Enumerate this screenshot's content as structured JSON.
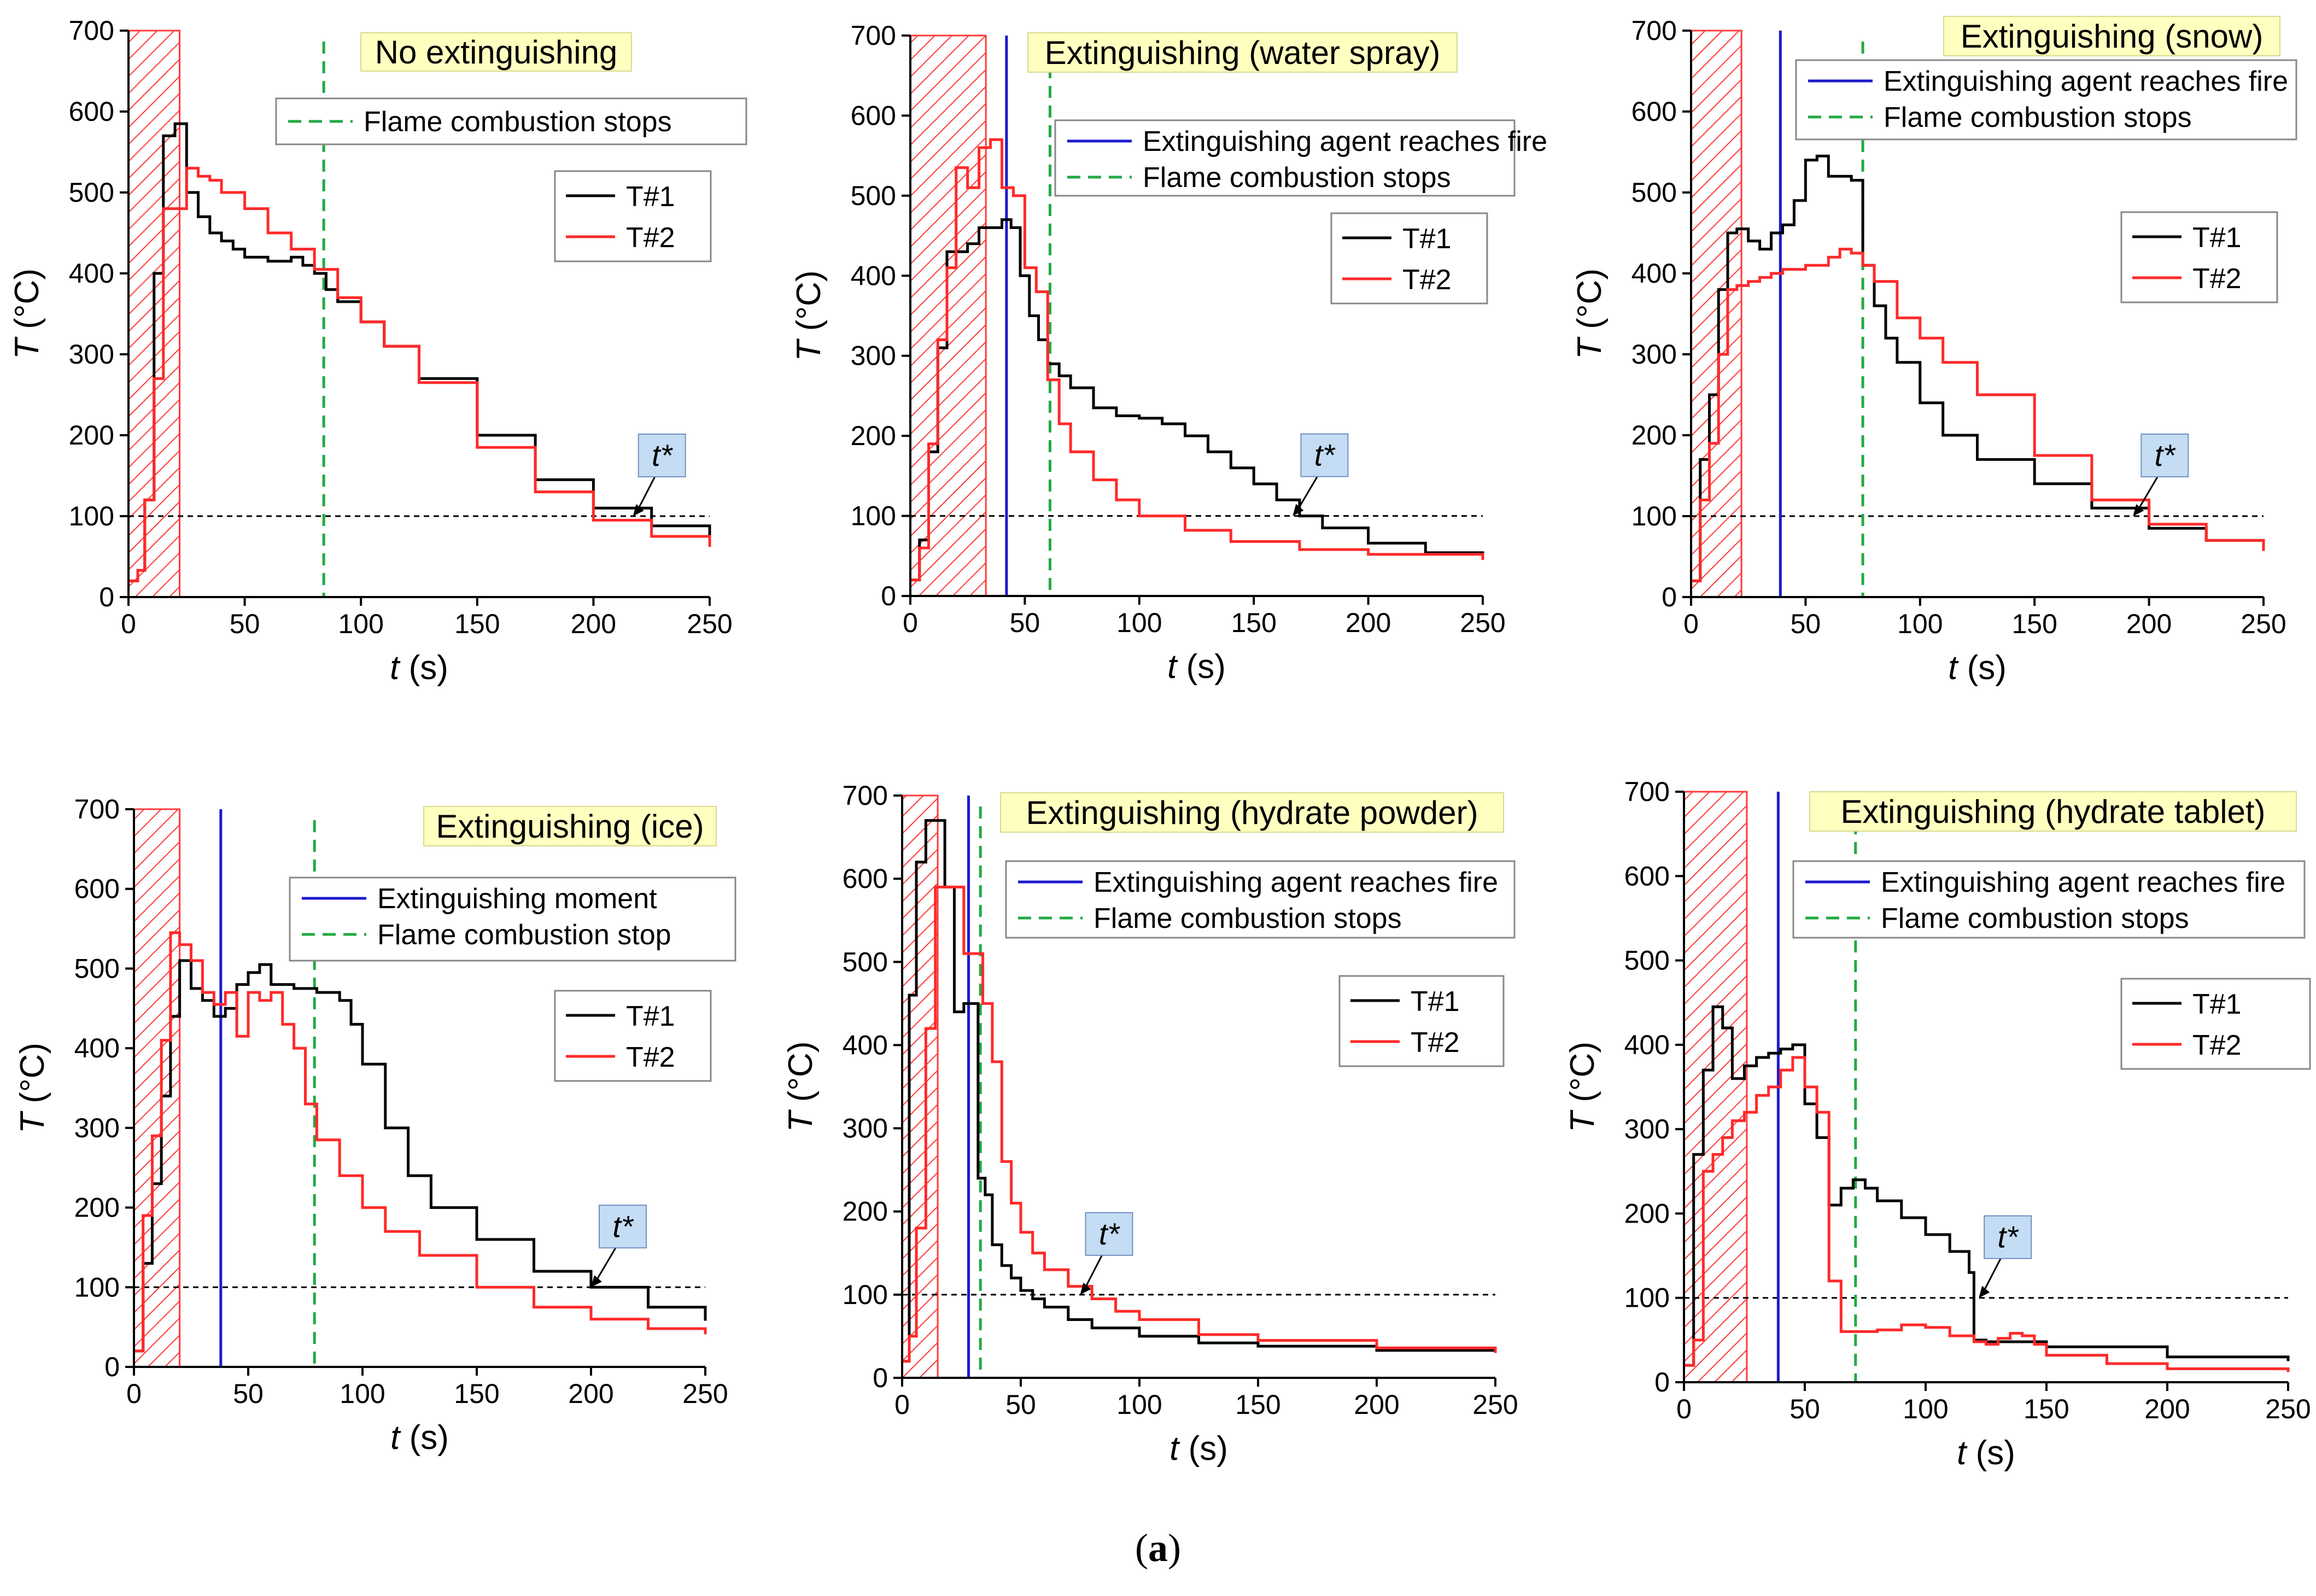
{
  "figure_caption": {
    "open": "(",
    "label": "a",
    "close": ")"
  },
  "colors": {
    "t1": "#000000",
    "t2": "#ff2a2a",
    "agent": "#1a1acc",
    "stop": "#22aa44",
    "hatch": "#ff3b3b",
    "title_bg": "#ffffc0",
    "tstar_bg": "#c4dcf4",
    "ref": "#000000"
  },
  "chart_data": [
    {
      "type": "line",
      "title": "No extinguishing",
      "xlabel_var": "t",
      "xlabel_unit": " (s)",
      "ylabel_var": "T",
      "ylabel_unit": " (°C)",
      "xlim": [
        0,
        250
      ],
      "ylim": [
        0,
        700
      ],
      "xticks": [
        0,
        50,
        100,
        150,
        200,
        250
      ],
      "yticks": [
        0,
        100,
        200,
        300,
        400,
        500,
        600,
        700
      ],
      "ignition_zone": [
        0,
        22
      ],
      "reference_line": 100,
      "agent_time": null,
      "stop_time": 84,
      "legend_lines": [
        {
          "label": "Flame combustion stops",
          "style": "stop"
        }
      ],
      "tstar": {
        "label": "t*",
        "x": 217
      },
      "series": [
        {
          "name": "T#1",
          "x": [
            0,
            4,
            7,
            11,
            15,
            20,
            25,
            30,
            35,
            40,
            45,
            50,
            60,
            70,
            75,
            80,
            85,
            90,
            100,
            110,
            125,
            150,
            175,
            200,
            225,
            250
          ],
          "y": [
            20,
            33,
            120,
            400,
            570,
            585,
            500,
            470,
            450,
            440,
            430,
            420,
            415,
            420,
            410,
            400,
            380,
            365,
            340,
            310,
            270,
            200,
            145,
            110,
            88,
            73
          ]
        },
        {
          "name": "T#2",
          "x": [
            0,
            4,
            7,
            11,
            15,
            20,
            25,
            30,
            35,
            40,
            50,
            60,
            70,
            80,
            90,
            100,
            110,
            125,
            150,
            175,
            200,
            225,
            250
          ],
          "y": [
            20,
            33,
            120,
            270,
            480,
            480,
            530,
            520,
            515,
            500,
            480,
            450,
            430,
            405,
            370,
            340,
            310,
            265,
            185,
            130,
            95,
            75,
            62
          ]
        }
      ]
    },
    {
      "type": "line",
      "title": "Extinguishing (water spray)",
      "xlabel_var": "t",
      "xlabel_unit": " (s)",
      "ylabel_var": "T",
      "ylabel_unit": " (°C)",
      "xlim": [
        0,
        250
      ],
      "ylim": [
        0,
        700
      ],
      "xticks": [
        0,
        50,
        100,
        150,
        200,
        250
      ],
      "yticks": [
        0,
        100,
        200,
        300,
        400,
        500,
        600,
        700
      ],
      "ignition_zone": [
        0,
        33
      ],
      "reference_line": 100,
      "agent_time": 42,
      "stop_time": 61,
      "legend_lines": [
        {
          "label": "Extinguishing agent reaches fire",
          "style": "agent"
        },
        {
          "label": "Flame combustion stops",
          "style": "stop"
        }
      ],
      "tstar": {
        "label": "t*",
        "x": 167
      },
      "series": [
        {
          "name": "T#1",
          "x": [
            0,
            4,
            8,
            12,
            16,
            20,
            25,
            30,
            35,
            40,
            44,
            48,
            52,
            56,
            60,
            65,
            70,
            80,
            90,
            100,
            110,
            120,
            130,
            140,
            150,
            160,
            170,
            180,
            200,
            225,
            250
          ],
          "y": [
            20,
            70,
            180,
            310,
            430,
            430,
            440,
            460,
            460,
            470,
            460,
            400,
            350,
            320,
            290,
            275,
            260,
            235,
            225,
            222,
            215,
            200,
            180,
            160,
            140,
            120,
            100,
            85,
            66,
            54,
            47
          ]
        },
        {
          "name": "T#2",
          "x": [
            0,
            4,
            8,
            12,
            16,
            20,
            25,
            30,
            35,
            40,
            45,
            50,
            55,
            60,
            65,
            70,
            80,
            90,
            100,
            120,
            140,
            170,
            200,
            250
          ],
          "y": [
            20,
            60,
            190,
            320,
            410,
            535,
            510,
            560,
            570,
            510,
            500,
            410,
            380,
            270,
            215,
            180,
            145,
            120,
            100,
            82,
            68,
            58,
            52,
            45
          ]
        }
      ]
    },
    {
      "type": "line",
      "title": "Extinguishing (snow)",
      "xlabel_var": "t",
      "xlabel_unit": " (s)",
      "ylabel_var": "T",
      "ylabel_unit": " (°C)",
      "xlim": [
        0,
        250
      ],
      "ylim": [
        0,
        700
      ],
      "xticks": [
        0,
        50,
        100,
        150,
        200,
        250
      ],
      "yticks": [
        0,
        100,
        200,
        300,
        400,
        500,
        600,
        700
      ],
      "ignition_zone": [
        0,
        22
      ],
      "reference_line": 100,
      "agent_time": 39,
      "stop_time": 75,
      "legend_lines": [
        {
          "label": "Extinguishing agent reaches fire",
          "style": "agent"
        },
        {
          "label": "Flame combustion stops",
          "style": "stop"
        }
      ],
      "tstar": {
        "label": "t*",
        "x": 193
      },
      "series": [
        {
          "name": "T#1",
          "x": [
            0,
            4,
            8,
            12,
            16,
            20,
            25,
            30,
            35,
            40,
            45,
            50,
            55,
            60,
            65,
            70,
            75,
            80,
            85,
            90,
            100,
            110,
            125,
            150,
            175,
            200,
            225,
            250
          ],
          "y": [
            20,
            170,
            250,
            380,
            450,
            455,
            440,
            430,
            450,
            460,
            490,
            540,
            545,
            520,
            520,
            515,
            410,
            360,
            320,
            290,
            240,
            200,
            170,
            140,
            110,
            85,
            70,
            58
          ]
        },
        {
          "name": "T#2",
          "x": [
            0,
            4,
            8,
            12,
            16,
            20,
            25,
            30,
            35,
            40,
            50,
            60,
            65,
            70,
            75,
            80,
            90,
            100,
            110,
            125,
            150,
            175,
            200,
            225,
            250
          ],
          "y": [
            20,
            120,
            190,
            300,
            380,
            385,
            390,
            395,
            400,
            405,
            410,
            420,
            430,
            425,
            410,
            390,
            345,
            320,
            290,
            250,
            175,
            120,
            90,
            70,
            57
          ]
        }
      ]
    },
    {
      "type": "line",
      "title": "Extinguishing (ice)",
      "xlabel_var": "t",
      "xlabel_unit": " (s)",
      "ylabel_var": "T",
      "ylabel_unit": " (°C)",
      "xlim": [
        0,
        250
      ],
      "ylim": [
        0,
        700
      ],
      "xticks": [
        0,
        50,
        100,
        150,
        200,
        250
      ],
      "yticks": [
        0,
        100,
        200,
        300,
        400,
        500,
        600,
        700
      ],
      "ignition_zone": [
        0,
        20
      ],
      "reference_line": 100,
      "agent_time": 38,
      "stop_time": 79,
      "legend_lines": [
        {
          "label": "Extinguishing moment",
          "style": "agent"
        },
        {
          "label": "Flame combustion stop",
          "style": "stop"
        }
      ],
      "tstar": {
        "label": "t*",
        "x": 200
      },
      "series": [
        {
          "name": "T#1",
          "x": [
            0,
            4,
            8,
            12,
            16,
            20,
            25,
            30,
            35,
            40,
            45,
            50,
            55,
            60,
            65,
            70,
            80,
            90,
            95,
            100,
            110,
            120,
            130,
            150,
            175,
            200,
            225,
            250
          ],
          "y": [
            20,
            130,
            230,
            340,
            440,
            510,
            475,
            460,
            440,
            450,
            480,
            495,
            505,
            480,
            480,
            475,
            470,
            460,
            430,
            380,
            300,
            240,
            200,
            160,
            120,
            100,
            75,
            58
          ]
        },
        {
          "name": "T#2",
          "x": [
            0,
            4,
            8,
            12,
            16,
            20,
            25,
            30,
            35,
            40,
            45,
            50,
            55,
            60,
            65,
            70,
            75,
            80,
            90,
            100,
            110,
            125,
            150,
            175,
            200,
            225,
            250
          ],
          "y": [
            20,
            190,
            290,
            410,
            545,
            530,
            510,
            470,
            455,
            470,
            415,
            470,
            460,
            470,
            430,
            400,
            330,
            285,
            240,
            200,
            170,
            140,
            100,
            75,
            60,
            48,
            41
          ]
        }
      ]
    },
    {
      "type": "line",
      "title": "Extinguishing (hydrate powder)",
      "xlabel_var": "t",
      "xlabel_unit": " (s)",
      "ylabel_var": "T",
      "ylabel_unit": " (°C)",
      "xlim": [
        0,
        250
      ],
      "ylim": [
        0,
        700
      ],
      "xticks": [
        0,
        50,
        100,
        150,
        200,
        250
      ],
      "yticks": [
        0,
        100,
        200,
        300,
        400,
        500,
        600,
        700
      ],
      "ignition_zone": [
        0,
        15
      ],
      "reference_line": 100,
      "agent_time": 28,
      "stop_time": 33,
      "legend_lines": [
        {
          "label": "Extinguishing agent reaches fire",
          "style": "agent"
        },
        {
          "label": "Flame combustion stops",
          "style": "stop"
        }
      ],
      "tstar": {
        "label": "t*",
        "x": 75
      },
      "series": [
        {
          "name": "T#1",
          "x": [
            0,
            3,
            6,
            10,
            14,
            18,
            22,
            26,
            29,
            32,
            35,
            38,
            42,
            46,
            50,
            55,
            60,
            70,
            80,
            100,
            125,
            150,
            200,
            250
          ],
          "y": [
            20,
            460,
            620,
            670,
            670,
            590,
            440,
            450,
            450,
            240,
            220,
            160,
            135,
            120,
            105,
            95,
            85,
            70,
            60,
            50,
            42,
            38,
            33,
            30
          ]
        },
        {
          "name": "T#2",
          "x": [
            0,
            3,
            6,
            10,
            14,
            18,
            22,
            26,
            30,
            34,
            38,
            42,
            46,
            50,
            55,
            60,
            70,
            80,
            90,
            100,
            125,
            150,
            200,
            250
          ],
          "y": [
            20,
            50,
            180,
            420,
            590,
            590,
            590,
            510,
            510,
            450,
            380,
            260,
            210,
            175,
            150,
            130,
            110,
            95,
            80,
            70,
            52,
            45,
            36,
            30
          ]
        }
      ]
    },
    {
      "type": "line",
      "title": "Extinguishing (hydrate tablet)",
      "xlabel_var": "t",
      "xlabel_unit": " (s)",
      "ylabel_var": "T",
      "ylabel_unit": " (°C)",
      "xlim": [
        0,
        250
      ],
      "ylim": [
        0,
        700
      ],
      "xticks": [
        0,
        50,
        100,
        150,
        200,
        250
      ],
      "yticks": [
        0,
        100,
        200,
        300,
        400,
        500,
        600,
        700
      ],
      "ignition_zone": [
        0,
        26
      ],
      "reference_line": 100,
      "agent_time": 39,
      "stop_time": 71,
      "legend_lines": [
        {
          "label": "Extinguishing agent reaches fire",
          "style": "agent"
        },
        {
          "label": "Flame combustion stops",
          "style": "stop"
        }
      ],
      "tstar": {
        "label": "t*",
        "x": 122
      },
      "series": [
        {
          "name": "T#1",
          "x": [
            0,
            4,
            8,
            12,
            16,
            20,
            25,
            30,
            35,
            40,
            45,
            50,
            55,
            60,
            65,
            70,
            75,
            80,
            90,
            100,
            110,
            118,
            120,
            125,
            150,
            200,
            250
          ],
          "y": [
            20,
            270,
            370,
            445,
            420,
            360,
            375,
            385,
            390,
            395,
            400,
            330,
            290,
            210,
            230,
            240,
            230,
            215,
            195,
            175,
            155,
            130,
            50,
            48,
            42,
            30,
            25
          ]
        },
        {
          "name": "T#2",
          "x": [
            0,
            4,
            8,
            12,
            16,
            20,
            25,
            30,
            35,
            40,
            45,
            50,
            55,
            60,
            65,
            70,
            80,
            90,
            100,
            110,
            120,
            125,
            130,
            135,
            140,
            145,
            150,
            175,
            200,
            250
          ],
          "y": [
            20,
            50,
            250,
            270,
            290,
            310,
            320,
            340,
            350,
            370,
            385,
            350,
            320,
            120,
            60,
            60,
            62,
            68,
            65,
            55,
            48,
            45,
            52,
            58,
            55,
            45,
            32,
            22,
            16,
            12
          ]
        }
      ]
    }
  ]
}
